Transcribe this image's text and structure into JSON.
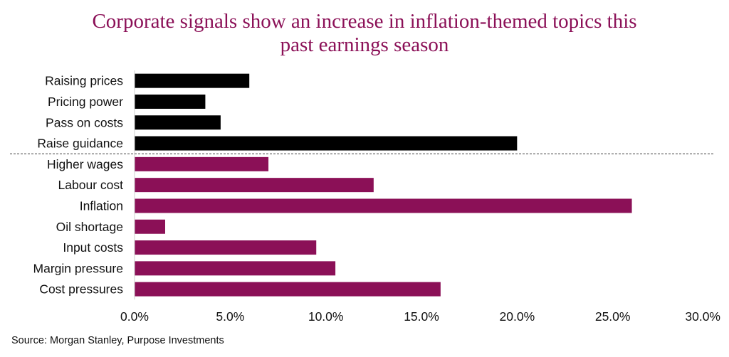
{
  "chart_data": {
    "type": "bar",
    "orientation": "horizontal",
    "title_lines": [
      "Corporate signals show an increase in inflation-themed topics this",
      "past earnings season"
    ],
    "categories": [
      "Raising prices",
      "Pricing power",
      "Pass on costs",
      "Raise guidance",
      "Higher wages",
      "Labour cost",
      "Inflation",
      "Oil shortage",
      "Input costs",
      "Margin pressure",
      "Cost pressures"
    ],
    "values": [
      6.0,
      3.7,
      4.5,
      20.0,
      7.0,
      12.5,
      26.0,
      1.6,
      9.5,
      10.5,
      16.0
    ],
    "bar_colors": [
      "#000000",
      "#000000",
      "#000000",
      "#000000",
      "#8b1057",
      "#8b1057",
      "#8b1057",
      "#8b1057",
      "#8b1057",
      "#8b1057",
      "#8b1057"
    ],
    "xlim": [
      0,
      30
    ],
    "xticks": [
      0,
      5,
      10,
      15,
      20,
      25,
      30
    ],
    "xtick_labels": [
      "0.0%",
      "5.0%",
      "10.0%",
      "15.0%",
      "20.0%",
      "25.0%",
      "30.0%"
    ],
    "divider_after_category": "Raise guidance",
    "grid": false,
    "legend": "none"
  },
  "source": "Source: Morgan Stanley, Purpose Investments"
}
